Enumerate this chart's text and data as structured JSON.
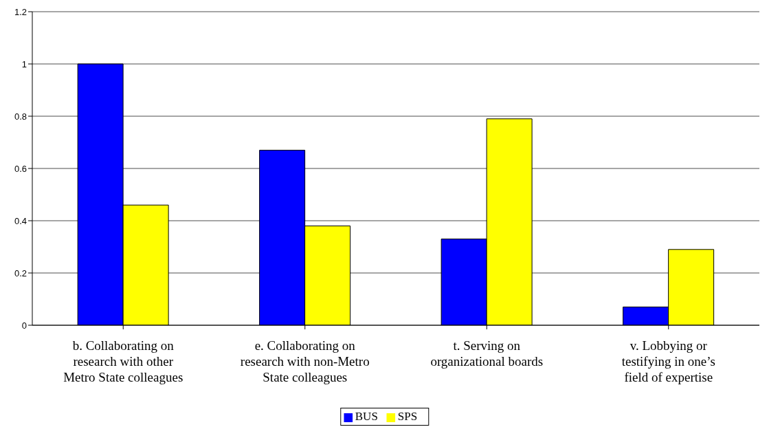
{
  "chart_data": {
    "type": "bar",
    "categories": [
      "b. Collaborating on research with other Metro State colleagues",
      "e. Collaborating on research with non-Metro State colleagues",
      "t. Serving on organizational boards",
      "v. Lobbying or testifying in one’s field of expertise"
    ],
    "series": [
      {
        "name": "BUS",
        "color": "#0000ff",
        "values": [
          1,
          0.67,
          0.33,
          0.07
        ]
      },
      {
        "name": "SPS",
        "color": "#ffff00",
        "values": [
          0.46,
          0.38,
          0.79,
          0.29
        ]
      }
    ],
    "ylim": [
      0,
      1.2
    ],
    "yticks": [
      0,
      0.2,
      0.4,
      0.6,
      0.8,
      1,
      1.2
    ],
    "grid": "y",
    "legend": "bottom"
  }
}
